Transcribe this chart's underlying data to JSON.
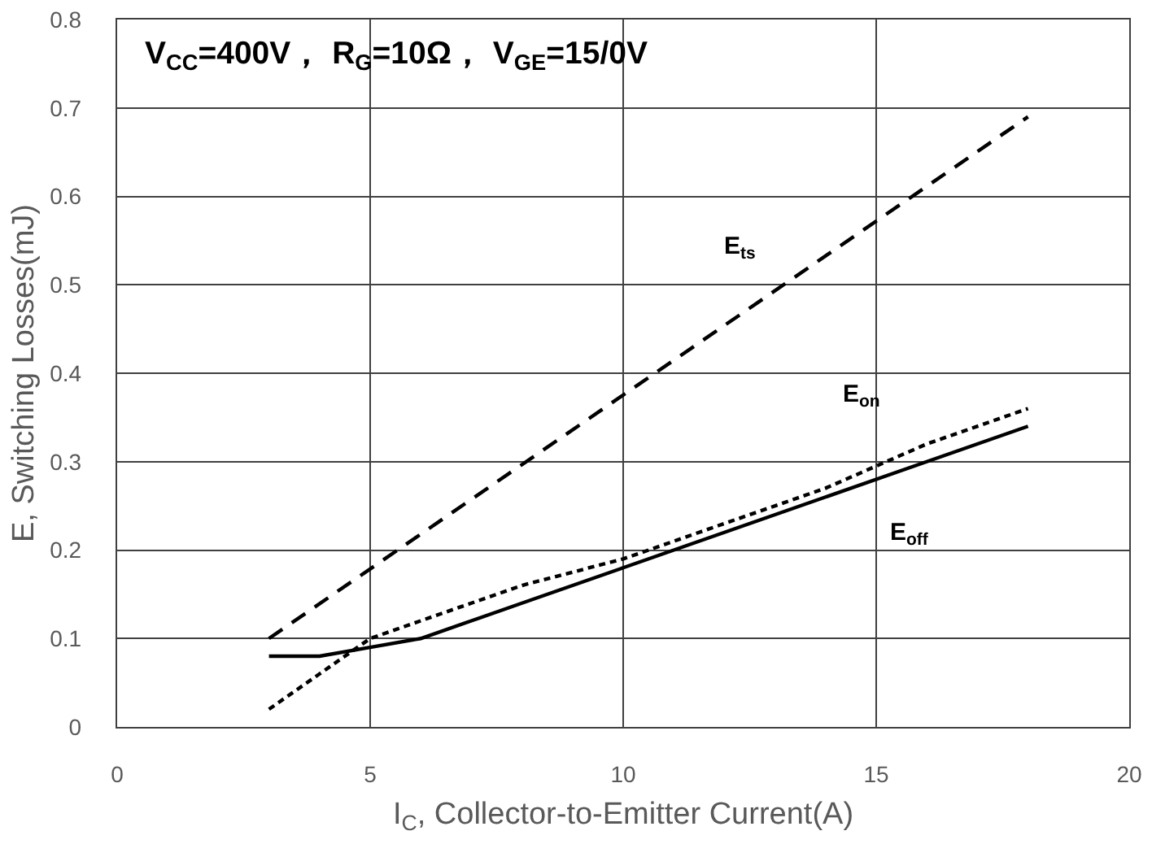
{
  "chart_data": {
    "type": "line",
    "xlabel": "I$_{C}$, Collector-to-Emitter Current(A)",
    "ylabel": "E, Switching Losses(mJ)",
    "annotations": [
      "V$_{CC}$=400V， R$_{G}$=10Ω， V$_{GE}$=15/0V"
    ],
    "xlim": [
      0,
      20
    ],
    "xticks": [
      0,
      5,
      10,
      15,
      20
    ],
    "ylim": [
      0,
      0.8
    ],
    "yticks": [
      0,
      0.1,
      0.2,
      0.3,
      0.4,
      0.5,
      0.6,
      0.7,
      0.8
    ],
    "grid": true,
    "series": [
      {
        "name": "E$_{ts}$",
        "color": "#000000",
        "line_style": "dashed",
        "x": [
          3,
          18
        ],
        "values": [
          0.1,
          0.69
        ]
      },
      {
        "name": "E$_{on}$",
        "color": "#000000",
        "line_style": "dotted",
        "x": [
          3,
          4,
          5,
          6,
          7,
          8,
          10,
          12,
          14,
          16,
          18
        ],
        "values": [
          0.02,
          0.06,
          0.1,
          0.12,
          0.14,
          0.16,
          0.19,
          0.23,
          0.27,
          0.32,
          0.36
        ]
      },
      {
        "name": "E$_{off}$",
        "color": "#000000",
        "line_style": "solid",
        "x": [
          3,
          4,
          5,
          6,
          7,
          8,
          10,
          12,
          14,
          16,
          18
        ],
        "values": [
          0.08,
          0.08,
          0.09,
          0.1,
          0.12,
          0.14,
          0.18,
          0.22,
          0.26,
          0.3,
          0.34
        ]
      }
    ]
  }
}
